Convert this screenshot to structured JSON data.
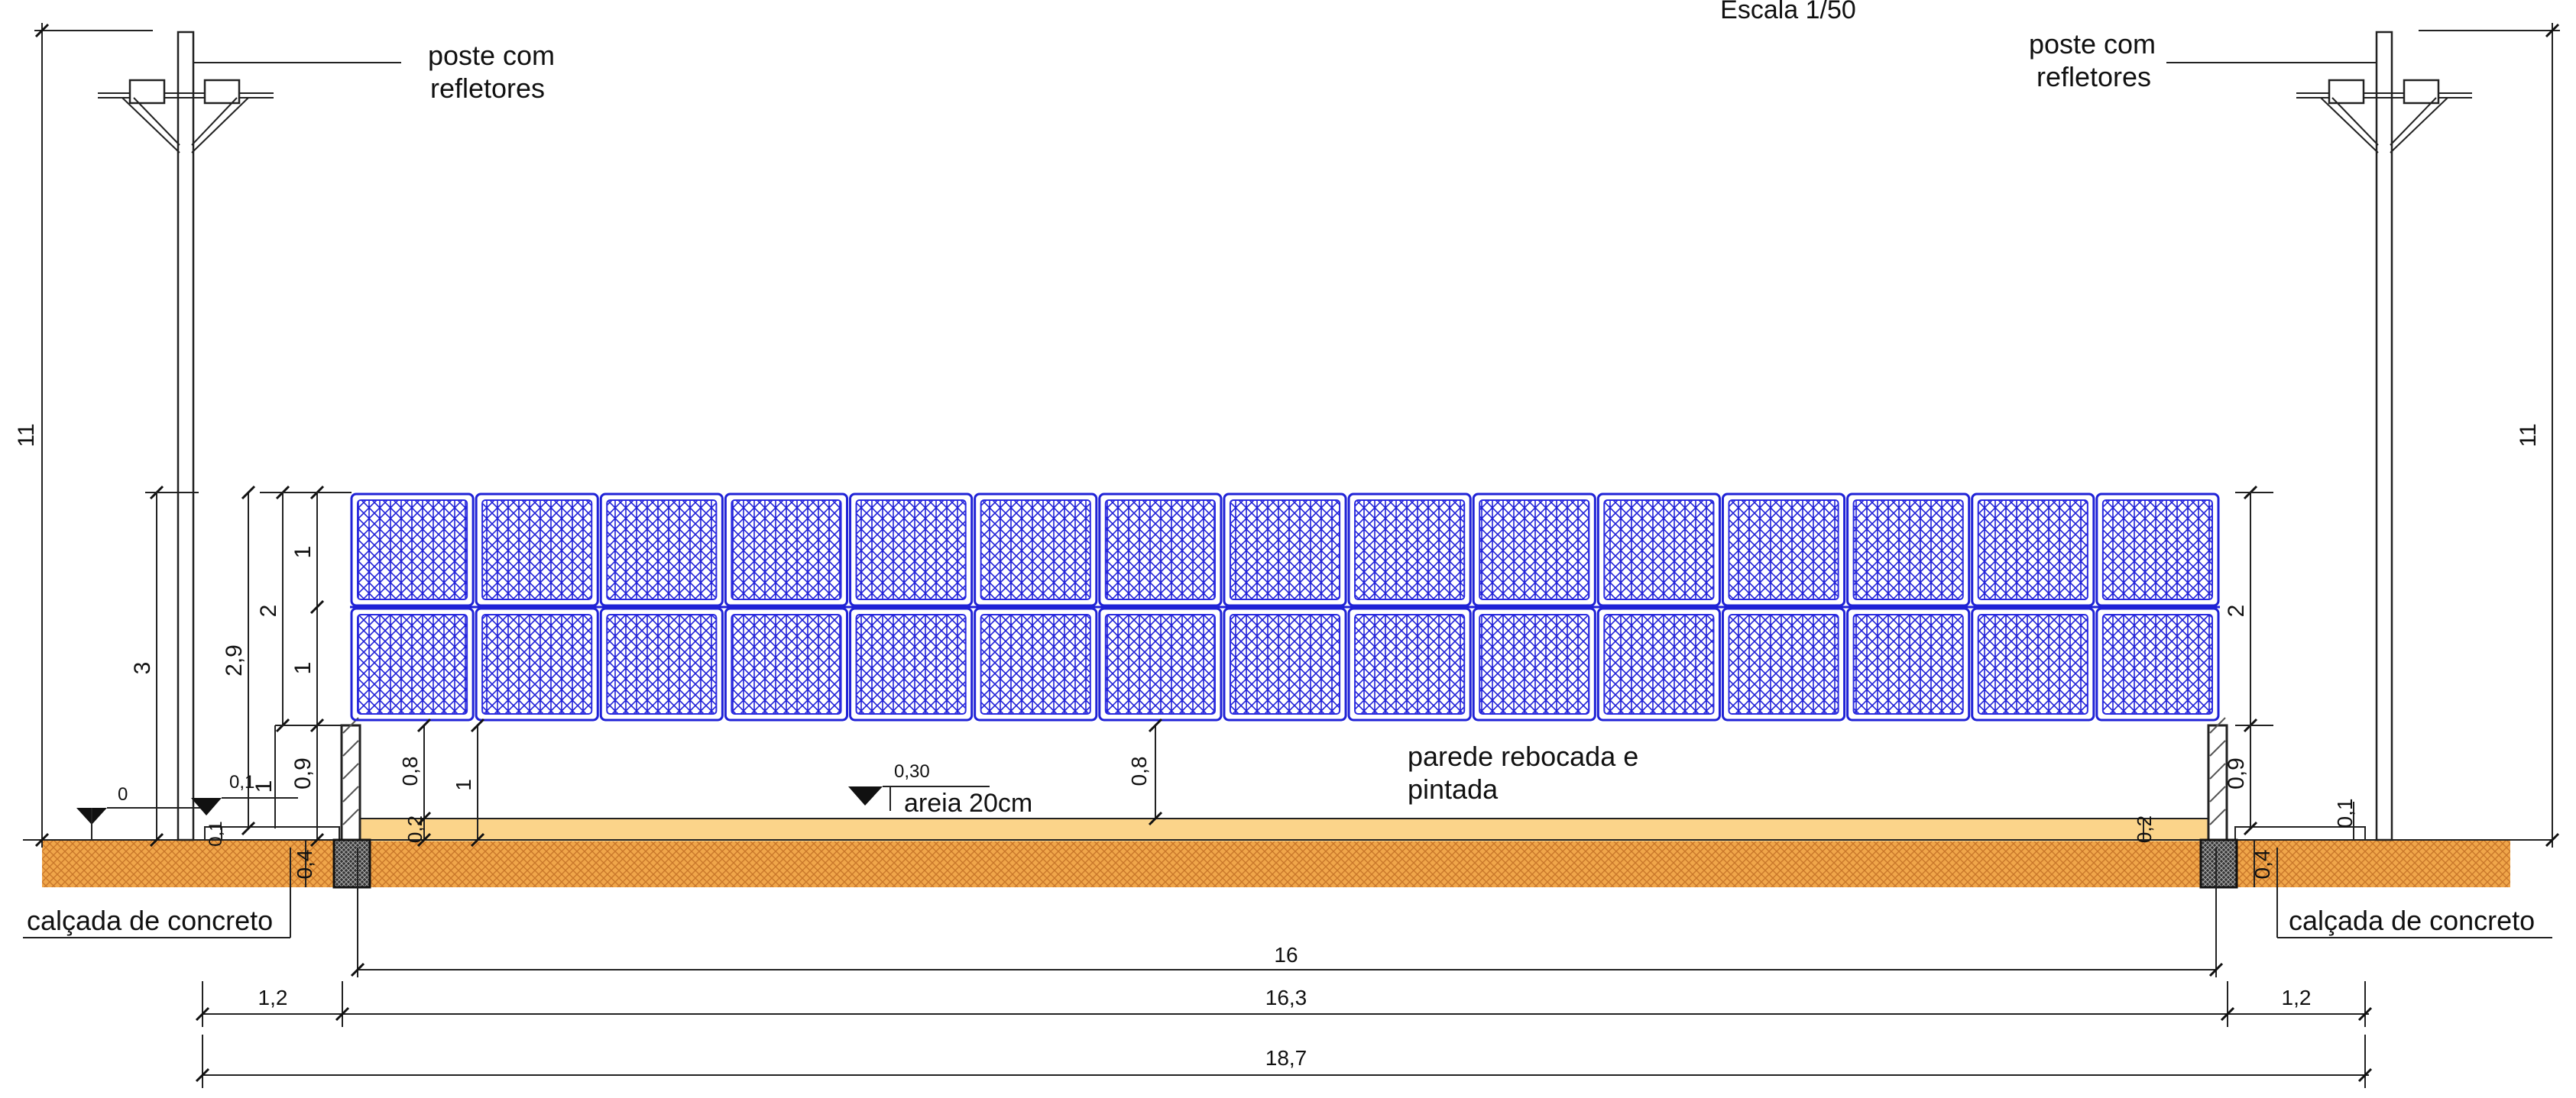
{
  "title": {
    "scale": "Escala 1/50"
  },
  "labels": {
    "pole_left_l1": "poste com",
    "pole_left_l2": "refletores",
    "pole_right_l1": "poste com",
    "pole_right_l2": "refletores",
    "sand": "areia 20cm",
    "wall_l1": "parede rebocada e",
    "wall_l2": "pintada",
    "sidewalk_left": "calçada de concreto",
    "sidewalk_right": "calçada de concreto"
  },
  "levels": {
    "left": "0",
    "sidewalk": "0,1",
    "sand": "0,30"
  },
  "dimensions": {
    "pole_height_left": "11",
    "pole_height_right": "11",
    "total_3": "3",
    "total_2_9": "2,9",
    "fence_2": "2",
    "fence_top_1": "1",
    "fence_mid_1": "1",
    "wall_0_9_left": "0,9",
    "wall_1_left": "1",
    "wall_0_8_left": "0,8",
    "wall_0_2_left": "0,2",
    "wall_1_inner": "1",
    "wall_0_8_center": "0,8",
    "foundation_0_4_left": "0,4",
    "sidewalk_0_1_left": "0,1",
    "fence_2_right": "2",
    "wall_0_9_right": "0,9",
    "sidewalk_0_1_right": "0,1",
    "foundation_0_4_right": "0,4",
    "wall_0_2_right": "0,2",
    "inner_width_16": "16",
    "width_16_3": "16,3",
    "side_1_2_left": "1,2",
    "side_1_2_right": "1,2",
    "total_18_7": "18,7"
  },
  "colors": {
    "fence_blue": "#1f22d6",
    "sand": "#fbd48a",
    "soil": "#f0a64a",
    "soil_hatch": "#c9772a",
    "foundation": "#333333"
  },
  "fence": {
    "panel_count": 15,
    "rows": 2
  }
}
